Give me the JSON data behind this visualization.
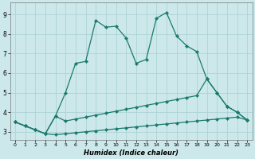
{
  "xlabel": "Humidex (Indice chaleur)",
  "bg_color": "#cce8ea",
  "grid_color": "#a8cfd2",
  "line_color": "#1a7a6e",
  "xlim": [
    -0.5,
    23.5
  ],
  "ylim": [
    2.6,
    9.6
  ],
  "x_ticks": [
    0,
    1,
    2,
    3,
    4,
    5,
    6,
    7,
    8,
    9,
    10,
    11,
    12,
    13,
    14,
    15,
    16,
    17,
    18,
    19,
    20,
    21,
    22,
    23
  ],
  "y_ticks": [
    3,
    4,
    5,
    6,
    7,
    8,
    9
  ],
  "series1_x": [
    0,
    1,
    2,
    3,
    4,
    5,
    6,
    7,
    8,
    9,
    10,
    11,
    12,
    13,
    14,
    15,
    16,
    17,
    18,
    19,
    20,
    21,
    22,
    23
  ],
  "series1_y": [
    3.5,
    3.3,
    3.1,
    2.9,
    3.8,
    5.0,
    6.5,
    6.6,
    8.7,
    8.35,
    8.4,
    7.8,
    6.5,
    6.7,
    8.8,
    9.1,
    7.9,
    7.4,
    7.1,
    5.7,
    5.0,
    4.3,
    4.0,
    3.6
  ],
  "series2_x": [
    0,
    1,
    2,
    3,
    4,
    5,
    6,
    7,
    8,
    9,
    10,
    11,
    12,
    13,
    14,
    15,
    16,
    17,
    18,
    19,
    20,
    21,
    22,
    23
  ],
  "series2_y": [
    3.5,
    3.3,
    3.1,
    2.9,
    3.8,
    3.55,
    3.65,
    3.75,
    3.85,
    3.95,
    4.05,
    4.15,
    4.25,
    4.35,
    4.45,
    4.55,
    4.65,
    4.75,
    4.85,
    5.7,
    5.0,
    4.3,
    4.0,
    3.6
  ],
  "series3_x": [
    0,
    1,
    2,
    3,
    4,
    5,
    6,
    7,
    8,
    9,
    10,
    11,
    12,
    13,
    14,
    15,
    16,
    17,
    18,
    19,
    20,
    21,
    22,
    23
  ],
  "series3_y": [
    3.5,
    3.3,
    3.1,
    2.9,
    2.85,
    2.9,
    2.95,
    3.0,
    3.05,
    3.1,
    3.15,
    3.2,
    3.25,
    3.3,
    3.35,
    3.4,
    3.45,
    3.5,
    3.55,
    3.6,
    3.65,
    3.7,
    3.75,
    3.6
  ]
}
